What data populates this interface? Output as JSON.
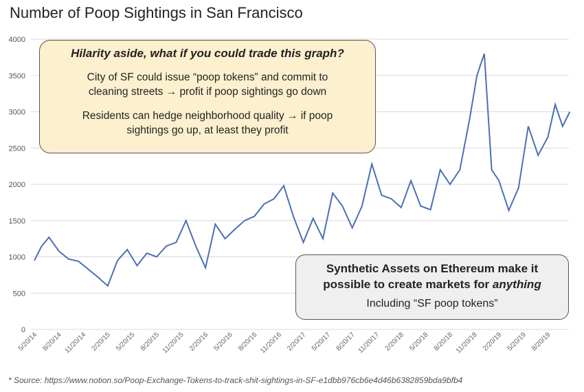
{
  "title": "Number of Poop Sightings in San Francisco",
  "callout_top": {
    "heading": "Hilarity aside, what if you could trade this graph?",
    "para1_line1": "City of SF could issue “poop tokens” and commit to",
    "para1_line2": "cleaning streets → profit if poop sightings go down",
    "para2_line1": "Residents can hedge neighborhood quality → if poop",
    "para2_line2": "sightings go up, at least they profit"
  },
  "callout_bottom": {
    "heading_line1": "Synthetic Assets on Ethereum make it",
    "heading_line2_prefix": "possible to create markets for ",
    "heading_line2_emph": "anything",
    "subtext": "Including “SF poop tokens”"
  },
  "footer": "* Source: https://www.notion.so/Poop-Exchange-Tokens-to-track-shit-sightings-in-SF-e1dbb976cb6e4d46b6382859bda9bfb4",
  "chart_data": {
    "type": "line",
    "title": "Number of Poop Sightings in San Francisco",
    "xlabel": "",
    "ylabel": "",
    "ylim": [
      0,
      4000
    ],
    "yticks": [
      "0",
      "500",
      "1000",
      "1500",
      "2000",
      "2500",
      "3000",
      "3500",
      "4000"
    ],
    "xticks": [
      "5/20/14",
      "8/20/14",
      "11/20/14",
      "2/20/15",
      "5/20/15",
      "8/20/15",
      "11/20/15",
      "2/20/16",
      "5/20/16",
      "8/20/16",
      "11/20/16",
      "2/20/17",
      "5/20/17",
      "8/20/17",
      "11/20/17",
      "2/20/18",
      "5/20/18",
      "8/20/18",
      "11/20/18",
      "2/20/19",
      "5/20/19",
      "8/20/19"
    ],
    "grid": true,
    "line_color": "#4a6fb5",
    "series": [
      {
        "x": [
          0,
          0.3,
          0.6,
          1.0,
          1.4,
          1.8,
          2.2,
          2.6,
          3.0,
          3.4,
          3.8,
          4.2,
          4.6,
          5.0,
          5.4,
          5.8,
          6.2,
          6.6,
          7.0,
          7.4,
          7.8,
          8.2,
          8.6,
          9.0,
          9.4,
          9.8,
          10.2,
          10.6,
          11.0,
          11.4,
          11.8,
          12.2,
          12.6,
          13.0,
          13.4,
          13.8,
          14.2,
          14.6,
          15.0,
          15.4,
          15.8,
          16.2,
          16.6,
          17.0,
          17.4,
          17.8,
          18.1,
          18.4,
          18.7,
          19.0,
          19.4,
          19.8,
          20.2,
          20.6,
          21.0,
          21.3,
          21.6,
          21.9
        ],
        "values": [
          950,
          1150,
          1270,
          1080,
          970,
          940,
          830,
          720,
          600,
          950,
          1100,
          880,
          1050,
          1000,
          1150,
          1200,
          1500,
          1150,
          850,
          1450,
          1250,
          1380,
          1500,
          1560,
          1730,
          1800,
          1980,
          1550,
          1200,
          1530,
          1250,
          1880,
          1700,
          1400,
          1700,
          2280,
          1850,
          1800,
          1680,
          2050,
          1700,
          1650,
          2200,
          2000,
          2200,
          2900,
          3500,
          3800,
          2200,
          2050,
          1640,
          1950,
          2800,
          2400,
          2650,
          3100,
          2800,
          3000
        ]
      }
    ]
  }
}
